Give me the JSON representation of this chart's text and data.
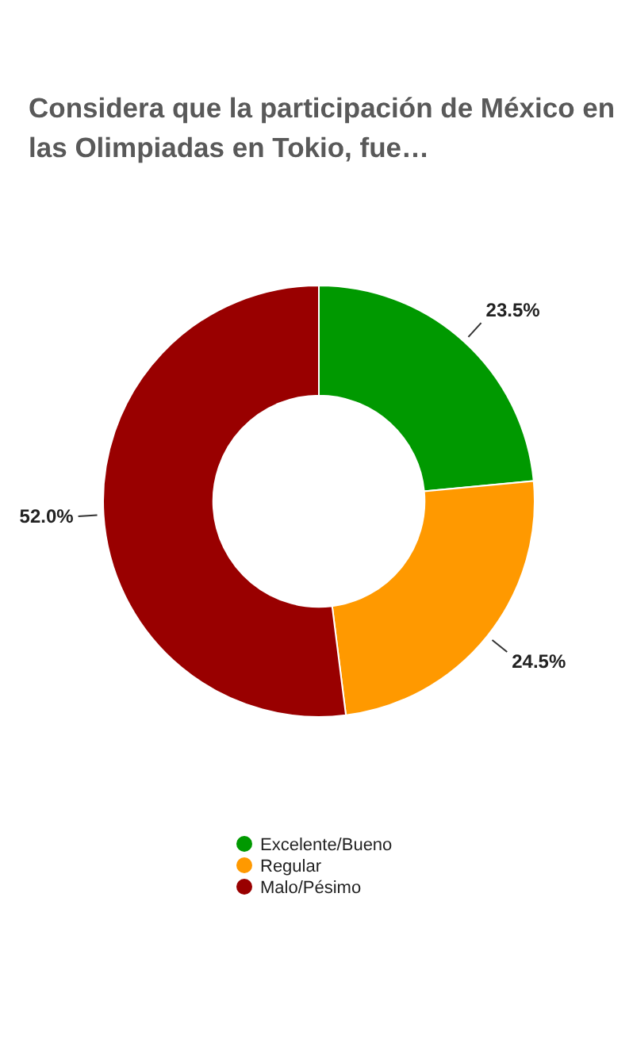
{
  "chart_data": {
    "type": "donut",
    "title": "Considera que la participación de México en las Olimpiadas en Tokio, fue…",
    "categories": [
      "Excelente/Bueno",
      "Regular",
      "Malo/Pésimo"
    ],
    "values": [
      23.5,
      24.5,
      52.0
    ],
    "colors": [
      "#009900",
      "#ff9900",
      "#990000"
    ],
    "value_labels": [
      "23.5%",
      "24.5%",
      "52.0%"
    ],
    "legend": "bottom"
  }
}
